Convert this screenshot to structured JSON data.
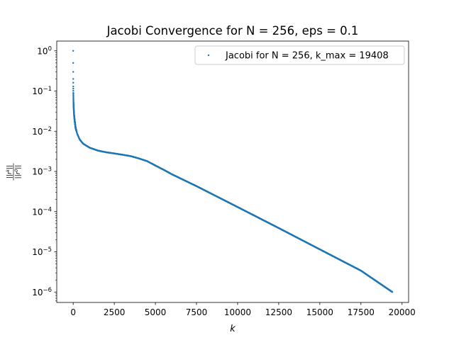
{
  "chart_data": {
    "type": "scatter",
    "title": "Jacobi Convergence for N = 256, eps = 0.1",
    "xlabel": "k",
    "ylabel_numerator": "||r",
    "ylabel_numerator_sup": "k",
    "ylabel_denominator": "||r",
    "ylabel_denominator_sup": "0",
    "ylabel_close": "||",
    "xscale": "linear",
    "yscale": "log",
    "xlim": [
      -1000,
      20400
    ],
    "ylim": [
      5.5e-07,
      1.75
    ],
    "x_ticks": [
      0,
      2500,
      5000,
      7500,
      10000,
      12500,
      15000,
      17500,
      20000
    ],
    "x_tick_labels": [
      "0",
      "2500",
      "5000",
      "7500",
      "10000",
      "12500",
      "15000",
      "17500",
      "20000"
    ],
    "y_ticks": [
      1e-06,
      1e-05,
      0.0001,
      0.001,
      0.01,
      0.1,
      1
    ],
    "y_tick_labels": [
      {
        "base": "10",
        "exp": "−6"
      },
      {
        "base": "10",
        "exp": "−5"
      },
      {
        "base": "10",
        "exp": "−4"
      },
      {
        "base": "10",
        "exp": "−3"
      },
      {
        "base": "10",
        "exp": "−2"
      },
      {
        "base": "10",
        "exp": "−1"
      },
      {
        "base": "10",
        "exp": "0"
      }
    ],
    "grid": false,
    "legend_position": "top-right",
    "series": [
      {
        "name": "Jacobi for N = 256, k_max = 19408",
        "color": "#1f77b4",
        "marker": "point",
        "k_max": 19408,
        "keypoints": [
          {
            "x": 0,
            "y": 1.0
          },
          {
            "x": 1,
            "y": 0.5
          },
          {
            "x": 2,
            "y": 0.3
          },
          {
            "x": 3,
            "y": 0.2
          },
          {
            "x": 5,
            "y": 0.13
          },
          {
            "x": 8,
            "y": 0.09
          },
          {
            "x": 12,
            "y": 0.07
          },
          {
            "x": 20,
            "y": 0.05
          },
          {
            "x": 35,
            "y": 0.035
          },
          {
            "x": 60,
            "y": 0.024
          },
          {
            "x": 100,
            "y": 0.017
          },
          {
            "x": 150,
            "y": 0.012
          },
          {
            "x": 250,
            "y": 0.0085
          },
          {
            "x": 400,
            "y": 0.0062
          },
          {
            "x": 600,
            "y": 0.0049
          },
          {
            "x": 1000,
            "y": 0.0039
          },
          {
            "x": 1500,
            "y": 0.0033
          },
          {
            "x": 2000,
            "y": 0.003
          },
          {
            "x": 2500,
            "y": 0.0028
          },
          {
            "x": 3000,
            "y": 0.0026
          },
          {
            "x": 3500,
            "y": 0.0024
          },
          {
            "x": 4000,
            "y": 0.0021
          },
          {
            "x": 4500,
            "y": 0.0018
          },
          {
            "x": 5000,
            "y": 0.0014
          },
          {
            "x": 5500,
            "y": 0.0011
          },
          {
            "x": 6000,
            "y": 0.00085
          },
          {
            "x": 7500,
            "y": 0.00043
          },
          {
            "x": 10000,
            "y": 0.00013
          },
          {
            "x": 12500,
            "y": 3.9e-05
          },
          {
            "x": 15000,
            "y": 1.15e-05
          },
          {
            "x": 17500,
            "y": 3.4e-06
          },
          {
            "x": 19408,
            "y": 1e-06
          }
        ]
      }
    ]
  }
}
